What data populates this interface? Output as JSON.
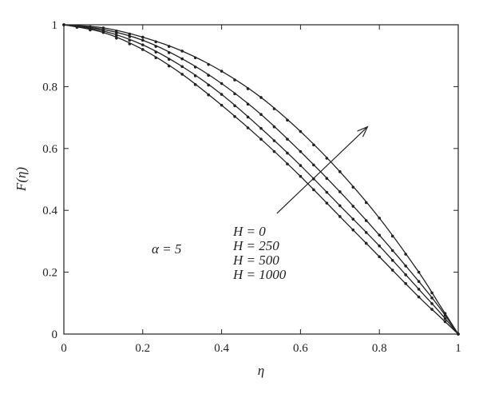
{
  "chart_data": {
    "type": "line",
    "xlabel": "η",
    "ylabel": "F(η)",
    "xlim": [
      0,
      1
    ],
    "ylim": [
      0,
      1
    ],
    "xticks": [
      "0",
      "0.2",
      "0.4",
      "0.6",
      "0.8",
      "1"
    ],
    "yticks": [
      "0",
      "0.2",
      "0.4",
      "0.6",
      "0.8",
      "1"
    ],
    "annotation": "α = 5",
    "legend": [
      "H = 0",
      "H = 250",
      "H = 500",
      "H = 1000"
    ],
    "series": [
      {
        "x": [
          0,
          0.1,
          0.2,
          0.3,
          0.4,
          0.5,
          0.6,
          0.7,
          0.8,
          0.9,
          0.95,
          1
        ],
        "y": [
          1,
          0.975,
          0.92,
          0.84,
          0.74,
          0.63,
          0.51,
          0.38,
          0.25,
          0.12,
          0.06,
          0
        ]
      },
      {
        "x": [
          0,
          0.1,
          0.2,
          0.3,
          0.4,
          0.5,
          0.6,
          0.7,
          0.8,
          0.9,
          0.95,
          1
        ],
        "y": [
          1,
          0.98,
          0.935,
          0.865,
          0.775,
          0.665,
          0.545,
          0.415,
          0.285,
          0.145,
          0.075,
          0
        ]
      },
      {
        "x": [
          0,
          0.1,
          0.2,
          0.3,
          0.4,
          0.5,
          0.6,
          0.7,
          0.8,
          0.9,
          0.95,
          1
        ],
        "y": [
          1,
          0.985,
          0.95,
          0.89,
          0.81,
          0.71,
          0.59,
          0.46,
          0.32,
          0.17,
          0.09,
          0
        ]
      },
      {
        "x": [
          0,
          0.1,
          0.2,
          0.3,
          0.4,
          0.5,
          0.6,
          0.7,
          0.8,
          0.9,
          0.95,
          1
        ],
        "y": [
          1,
          0.99,
          0.96,
          0.915,
          0.85,
          0.765,
          0.655,
          0.525,
          0.375,
          0.2,
          0.1,
          0
        ]
      }
    ],
    "arrow": {
      "from": [
        0.54,
        0.39
      ],
      "to": [
        0.77,
        0.67
      ]
    },
    "grid": false
  }
}
